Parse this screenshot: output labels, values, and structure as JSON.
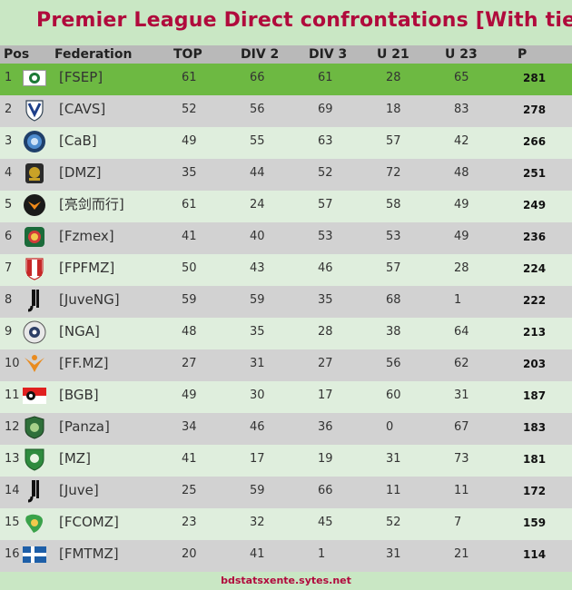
{
  "title": "Premier League Direct confrontations [With ties]",
  "columns": [
    "Pos",
    "Federation",
    "TOP",
    "DIV 2",
    "DIV 3",
    "U 21",
    "U 23",
    "P"
  ],
  "rows": [
    {
      "pos": "1",
      "fed": "[FSEP]",
      "top": "61",
      "div2": "66",
      "div3": "61",
      "u21": "28",
      "u23": "65",
      "p": "281",
      "logo": "palmeiras-crest-icon"
    },
    {
      "pos": "2",
      "fed": "[CAVS]",
      "top": "52",
      "div2": "56",
      "div3": "69",
      "u21": "18",
      "u23": "83",
      "p": "278",
      "logo": "velez-shield-icon"
    },
    {
      "pos": "3",
      "fed": "[CaB]",
      "top": "49",
      "div2": "55",
      "div3": "63",
      "u21": "57",
      "u23": "42",
      "p": "266",
      "logo": "blue-round-crest-icon"
    },
    {
      "pos": "4",
      "fed": "[DMZ]",
      "top": "35",
      "div2": "44",
      "div3": "52",
      "u21": "72",
      "u23": "48",
      "p": "251",
      "logo": "dark-gold-crest-icon"
    },
    {
      "pos": "5",
      "fed": "[亮剑而行]",
      "top": "61",
      "div2": "24",
      "div3": "57",
      "u21": "58",
      "u23": "49",
      "p": "249",
      "logo": "orange-circle-crest-icon"
    },
    {
      "pos": "6",
      "fed": "[Fzmex]",
      "top": "41",
      "div2": "40",
      "div3": "53",
      "u21": "53",
      "u23": "49",
      "p": "236",
      "logo": "mexico-crest-icon"
    },
    {
      "pos": "7",
      "fed": "[FPFMZ]",
      "top": "50",
      "div2": "43",
      "div3": "46",
      "u21": "57",
      "u23": "28",
      "p": "224",
      "logo": "red-white-shield-icon"
    },
    {
      "pos": "8",
      "fed": "[JuveNG]",
      "top": "59",
      "div2": "59",
      "div3": "35",
      "u21": "68",
      "u23": "1",
      "p": "222",
      "logo": "juventus-j-icon"
    },
    {
      "pos": "9",
      "fed": "[NGA]",
      "top": "48",
      "div2": "35",
      "div3": "28",
      "u21": "38",
      "u23": "64",
      "p": "213",
      "logo": "white-round-crest-icon"
    },
    {
      "pos": "10",
      "fed": "[FF.MZ]",
      "top": "27",
      "div2": "31",
      "div3": "27",
      "u21": "56",
      "u23": "62",
      "p": "203",
      "logo": "orange-phoenix-icon"
    },
    {
      "pos": "11",
      "fed": "[BGB]",
      "top": "49",
      "div2": "30",
      "div3": "17",
      "u21": "60",
      "u23": "31",
      "p": "187",
      "logo": "red-white-flag-icon"
    },
    {
      "pos": "12",
      "fed": "[Panza]",
      "top": "34",
      "div2": "46",
      "div3": "36",
      "u21": "0",
      "u23": "67",
      "p": "183",
      "logo": "green-badge-icon"
    },
    {
      "pos": "13",
      "fed": "[MZ]",
      "top": "41",
      "div2": "17",
      "div3": "19",
      "u21": "31",
      "u23": "73",
      "p": "181",
      "logo": "green-shield-icon"
    },
    {
      "pos": "14",
      "fed": "[Juve]",
      "top": "25",
      "div2": "59",
      "div3": "66",
      "u21": "11",
      "u23": "11",
      "p": "172",
      "logo": "juventus-j-icon"
    },
    {
      "pos": "15",
      "fed": "[FCOMZ]",
      "top": "23",
      "div2": "32",
      "div3": "45",
      "u21": "52",
      "u23": "7",
      "p": "159",
      "logo": "brazil-map-icon"
    },
    {
      "pos": "16",
      "fed": "[FMTMZ]",
      "top": "20",
      "div2": "41",
      "div3": "1",
      "u21": "31",
      "u23": "21",
      "p": "114",
      "logo": "small-flag-icon"
    }
  ],
  "footer": "bdstatsxente.sytes.net",
  "colors": {
    "title": "#b00a3c",
    "leader_row": "#6db942",
    "odd_row": "#dfeedd",
    "even_row": "#d2d2d2",
    "header": "#b9b9b9",
    "background": "#c9e7c4"
  }
}
